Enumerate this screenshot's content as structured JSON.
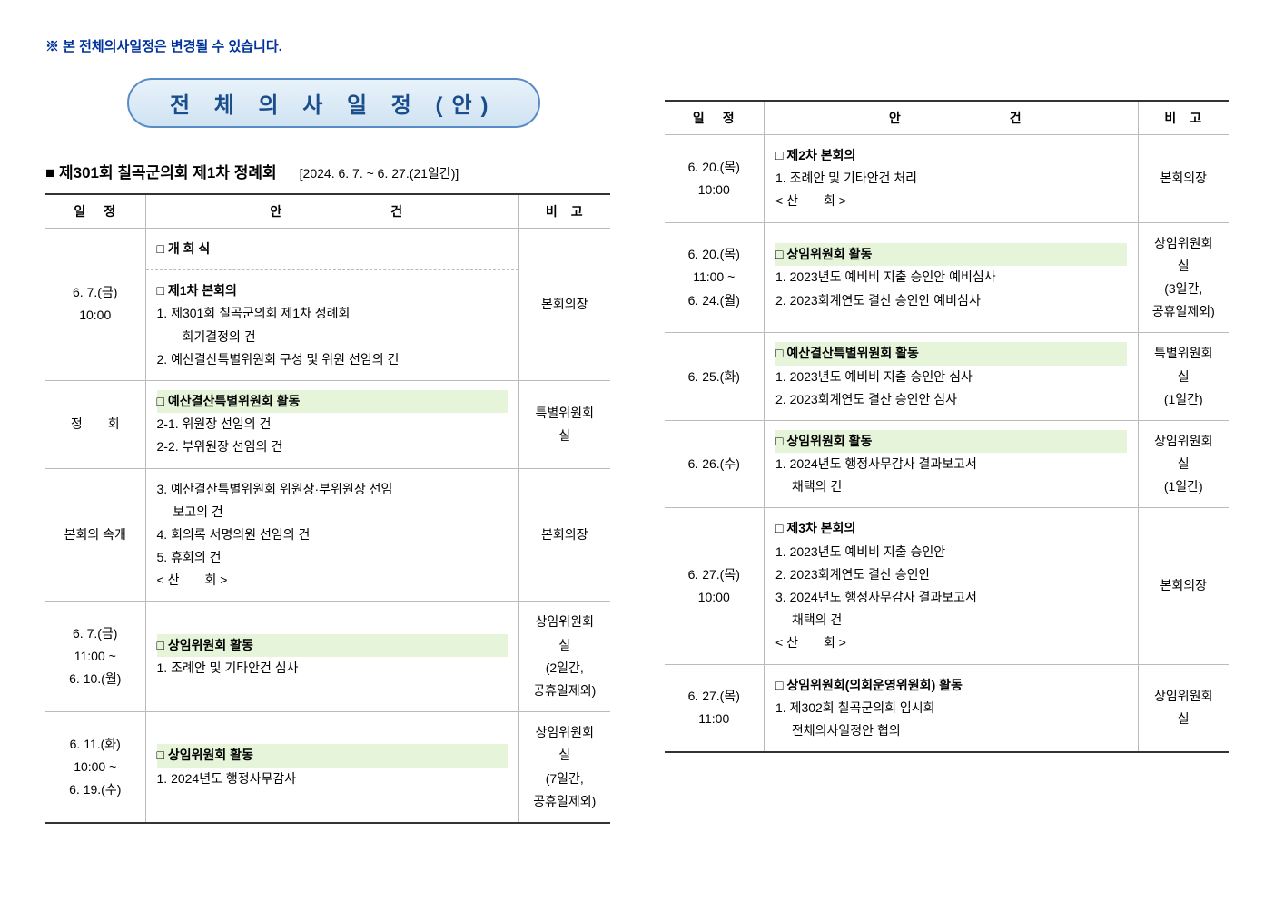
{
  "notice": "※ 본 전체의사일정은 변경될 수 있습니다.",
  "banner_title": "전 체 의 사 일 정 (안)",
  "session": {
    "title": "■ 제301회 칠곡군의회 제1차 정례회",
    "period": "[2024. 6. 7. ~ 6. 27.(21일간)]"
  },
  "columns": {
    "schedule": "일정",
    "agenda": "안건",
    "note": "비고"
  },
  "left_rows": [
    {
      "schedule": "6. 7.(금)\n10:00",
      "blocks": [
        {
          "title": "□ 개 회 식",
          "items": []
        },
        {
          "title": "□ 제1차 본회의",
          "items": [
            "1. 제301회 칠곡군의회 제1차 정례회\n　　회기결정의 건",
            "2. 예산결산특별위원회 구성 및 위원 선임의 건"
          ]
        }
      ],
      "note": "본회의장",
      "dashed": true
    },
    {
      "schedule": "정　　회",
      "blocks": [
        {
          "title": "□ 예산결산특별위원회 활동",
          "highlight": true,
          "items": [
            "2-1. 위원장 선임의 건",
            "2-2. 부위원장 선임의 건"
          ]
        }
      ],
      "note": "특별위원회실",
      "dashed": true
    },
    {
      "schedule": "본회의 속개",
      "blocks": [
        {
          "items": [
            "3. 예산결산특별위원회 위원장·부위원장 선임\n　 보고의 건",
            "4. 회의록 서명의원 선임의 건",
            "5. 휴회의 건",
            "< 산　　회 >"
          ]
        }
      ],
      "note": "본회의장",
      "dashed": false
    },
    {
      "schedule": "6. 7.(금)\n11:00 ~\n6. 10.(월)",
      "blocks": [
        {
          "title": "□ 상임위원회 활동",
          "highlight": true,
          "items": [
            "1. 조례안 및 기타안건 심사"
          ]
        }
      ],
      "note": "상임위원회실\n(2일간,\n공휴일제외)",
      "dashed": false
    },
    {
      "schedule": "6. 11.(화)\n10:00 ~\n6. 19.(수)",
      "blocks": [
        {
          "title": "□ 상임위원회 활동",
          "highlight": true,
          "items": [
            "1. 2024년도 행정사무감사"
          ]
        }
      ],
      "note": "상임위원회실\n(7일간,\n공휴일제외)",
      "dashed": false
    }
  ],
  "right_rows": [
    {
      "schedule": "6. 20.(목)\n10:00",
      "blocks": [
        {
          "title": "□ 제2차 본회의",
          "items": [
            "1. 조례안 및 기타안건 처리",
            "< 산　　회 >"
          ]
        }
      ],
      "note": "본회의장",
      "dashed": false
    },
    {
      "schedule": "6. 20.(목)\n11:00 ~\n6. 24.(월)",
      "blocks": [
        {
          "title": "□ 상임위원회 활동",
          "highlight": true,
          "items": [
            "1. 2023년도 예비비 지출 승인안 예비심사",
            "2. 2023회계연도 결산 승인안 예비심사"
          ]
        }
      ],
      "note": "상임위원회실\n(3일간,\n공휴일제외)",
      "dashed": false
    },
    {
      "schedule": "6. 25.(화)",
      "blocks": [
        {
          "title": "□ 예산결산특별위원회 활동",
          "highlight": true,
          "items": [
            "1. 2023년도 예비비 지출 승인안 심사",
            "2. 2023회계연도 결산 승인안 심사"
          ]
        }
      ],
      "note": "특별위원회실\n(1일간)",
      "dashed": true
    },
    {
      "schedule": "6. 26.(수)",
      "blocks": [
        {
          "title": "□ 상임위원회 활동",
          "highlight": true,
          "items": [
            "1. 2024년도 행정사무감사 결과보고서\n　 채택의 건"
          ]
        }
      ],
      "note": "상임위원회실\n(1일간)",
      "dashed": false
    },
    {
      "schedule": "6. 27.(목)\n10:00",
      "blocks": [
        {
          "title": "□ 제3차 본회의",
          "items": [
            "1. 2023년도 예비비 지출 승인안",
            "2. 2023회계연도 결산 승인안",
            "3. 2024년도 행정사무감사 결과보고서\n　 채택의 건",
            "< 산　　회 >"
          ]
        }
      ],
      "note": "본회의장",
      "dashed": true
    },
    {
      "schedule": "6. 27.(목)\n11:00",
      "blocks": [
        {
          "title": "□ 상임위원회(의회운영위원회) 활동",
          "items": [
            "1. 제302회 칠곡군의회 임시회\n　 전체의사일정안 협의"
          ]
        }
      ],
      "note": "상임위원회실",
      "dashed": false
    }
  ]
}
